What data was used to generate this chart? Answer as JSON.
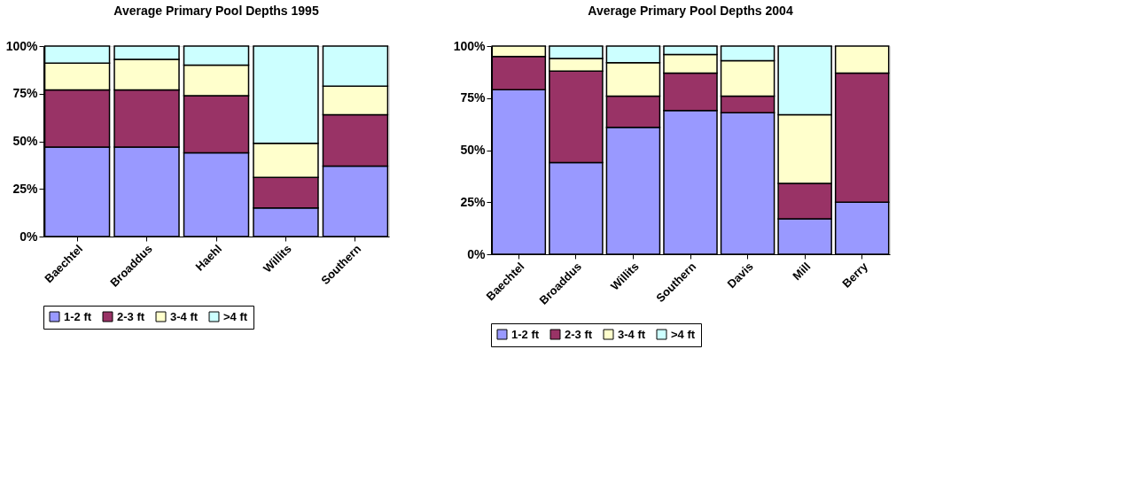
{
  "chart_data": [
    {
      "type": "bar",
      "title": "Average Primary Pool Depths 1995",
      "stacked": true,
      "categories": [
        "Baechtel",
        "Broaddus",
        "Haehl",
        "Willits",
        "Southern"
      ],
      "series": [
        {
          "name": "1-2 ft",
          "color": "#9999ff",
          "values": [
            47,
            47,
            44,
            15,
            37
          ]
        },
        {
          "name": "2-3 ft",
          "color": "#993366",
          "values": [
            30,
            30,
            30,
            16,
            27
          ]
        },
        {
          "name": "3-4 ft",
          "color": "#ffffcc",
          "values": [
            14,
            16,
            16,
            18,
            15
          ]
        },
        {
          "name": ">4 ft",
          "color": "#ccffff",
          "values": [
            9,
            7,
            10,
            51,
            21
          ]
        }
      ],
      "ylim": [
        0,
        100
      ],
      "yticks": [
        {
          "value": 0,
          "label": "0%"
        },
        {
          "value": 25,
          "label": "25%"
        },
        {
          "value": 50,
          "label": "50%"
        },
        {
          "value": 75,
          "label": "75%"
        },
        {
          "value": 100,
          "label": "100%"
        }
      ],
      "grid": false,
      "legend": "bottom"
    },
    {
      "type": "bar",
      "title": "Average Primary Pool Depths 2004",
      "stacked": true,
      "categories": [
        "Baechtel",
        "Broaddus",
        "Willits",
        "Southern",
        "Davis",
        "Mill",
        "Berry"
      ],
      "series": [
        {
          "name": "1-2 ft",
          "color": "#9999ff",
          "values": [
            79,
            44,
            61,
            69,
            68,
            17,
            25
          ]
        },
        {
          "name": "2-3 ft",
          "color": "#993366",
          "values": [
            16,
            44,
            15,
            18,
            8,
            17,
            62
          ]
        },
        {
          "name": "3-4 ft",
          "color": "#ffffcc",
          "values": [
            5,
            6,
            16,
            9,
            17,
            33,
            13
          ]
        },
        {
          "name": ">4 ft",
          "color": "#ccffff",
          "values": [
            null,
            6,
            8,
            4,
            7,
            33,
            null
          ]
        }
      ],
      "ylim": [
        0,
        100
      ],
      "yticks": [
        {
          "value": 0,
          "label": "0%"
        },
        {
          "value": 25,
          "label": "25%"
        },
        {
          "value": 50,
          "label": "50%"
        },
        {
          "value": 75,
          "label": "75%"
        },
        {
          "value": 100,
          "label": "100%"
        }
      ],
      "grid": false,
      "legend": "bottom"
    }
  ]
}
